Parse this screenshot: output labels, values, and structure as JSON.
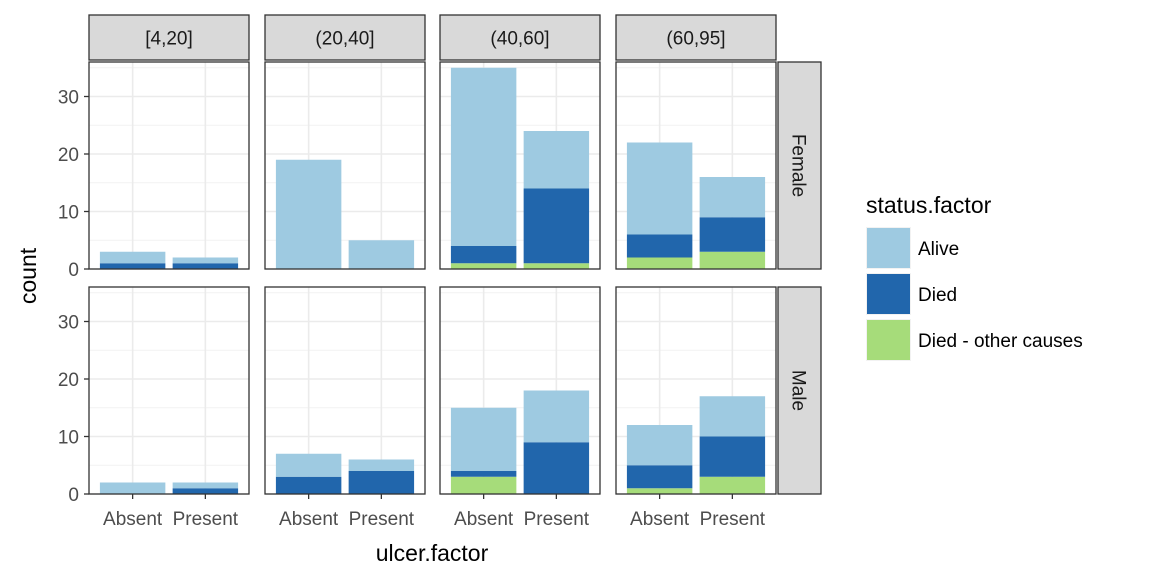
{
  "chart_data": {
    "type": "bar",
    "stacked": true,
    "facet_columns": [
      "[4,20]",
      "(20,40]",
      "(40,60]",
      "(60,95]"
    ],
    "facet_rows": [
      "Female",
      "Male"
    ],
    "categories": [
      "Absent",
      "Present"
    ],
    "xlabel": "ulcer.factor",
    "ylabel": "count",
    "ylim": [
      0,
      36
    ],
    "yticks": [
      0,
      10,
      20,
      30
    ],
    "grid": true,
    "legend": {
      "title": "status.factor",
      "position": "right",
      "stack_order_bottom_to_top": [
        "Died - other causes",
        "Died",
        "Alive"
      ]
    },
    "series": [
      {
        "name": "Alive",
        "color": "#9ecae1"
      },
      {
        "name": "Died",
        "color": "#2166ac"
      },
      {
        "name": "Died - other causes",
        "color": "#a6dc7a"
      }
    ],
    "panels": [
      {
        "row": "Female",
        "col": "[4,20]",
        "bars": [
          {
            "category": "Absent",
            "Alive": 2,
            "Died": 1,
            "Died - other causes": 0
          },
          {
            "category": "Present",
            "Alive": 1,
            "Died": 1,
            "Died - other causes": 0
          }
        ]
      },
      {
        "row": "Female",
        "col": "(20,40]",
        "bars": [
          {
            "category": "Absent",
            "Alive": 19,
            "Died": 0,
            "Died - other causes": 0
          },
          {
            "category": "Present",
            "Alive": 5,
            "Died": 0,
            "Died - other causes": 0
          }
        ]
      },
      {
        "row": "Female",
        "col": "(40,60]",
        "bars": [
          {
            "category": "Absent",
            "Alive": 31,
            "Died": 3,
            "Died - other causes": 1
          },
          {
            "category": "Present",
            "Alive": 10,
            "Died": 13,
            "Died - other causes": 1
          }
        ]
      },
      {
        "row": "Female",
        "col": "(60,95]",
        "bars": [
          {
            "category": "Absent",
            "Alive": 16,
            "Died": 4,
            "Died - other causes": 2
          },
          {
            "category": "Present",
            "Alive": 7,
            "Died": 6,
            "Died - other causes": 3
          }
        ]
      },
      {
        "row": "Male",
        "col": "[4,20]",
        "bars": [
          {
            "category": "Absent",
            "Alive": 2,
            "Died": 0,
            "Died - other causes": 0
          },
          {
            "category": "Present",
            "Alive": 1,
            "Died": 1,
            "Died - other causes": 0
          }
        ]
      },
      {
        "row": "Male",
        "col": "(20,40]",
        "bars": [
          {
            "category": "Absent",
            "Alive": 4,
            "Died": 3,
            "Died - other causes": 0
          },
          {
            "category": "Present",
            "Alive": 2,
            "Died": 4,
            "Died - other causes": 0
          }
        ]
      },
      {
        "row": "Male",
        "col": "(40,60]",
        "bars": [
          {
            "category": "Absent",
            "Alive": 11,
            "Died": 1,
            "Died - other causes": 3
          },
          {
            "category": "Present",
            "Alive": 9,
            "Died": 9,
            "Died - other causes": 0
          }
        ]
      },
      {
        "row": "Male",
        "col": "(60,95]",
        "bars": [
          {
            "category": "Absent",
            "Alive": 7,
            "Died": 4,
            "Died - other causes": 1
          },
          {
            "category": "Present",
            "Alive": 7,
            "Died": 7,
            "Died - other causes": 3
          }
        ]
      }
    ]
  }
}
